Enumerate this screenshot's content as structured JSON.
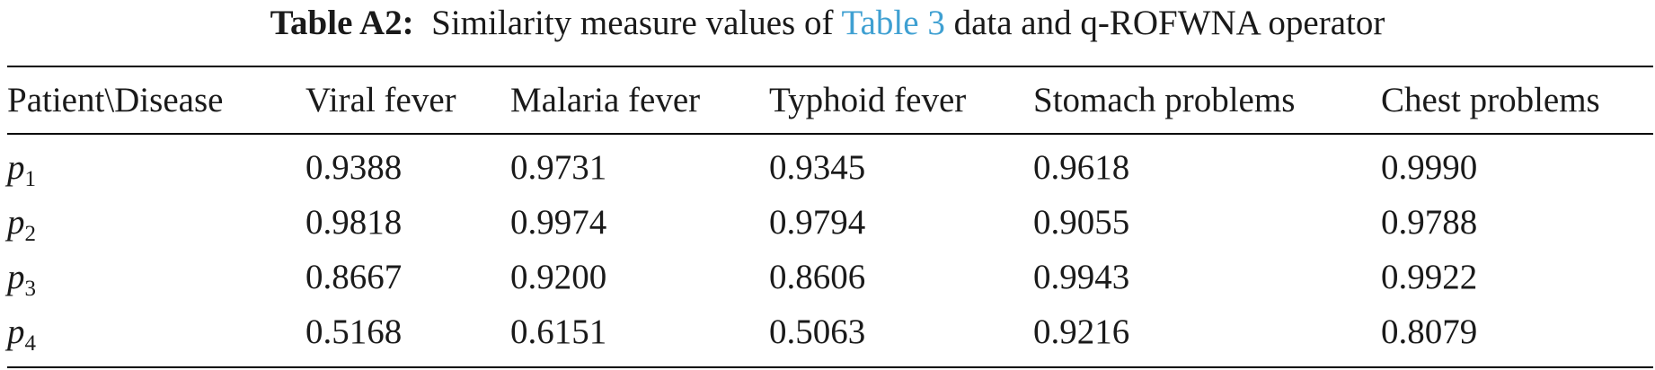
{
  "caption": {
    "label": "Table A2:",
    "text_before": "Similarity measure values of",
    "link": "Table 3",
    "text_after": "data and q-ROFWNA operator"
  },
  "table": {
    "columns": [
      "Patient\\Disease",
      "Viral fever",
      "Malaria fever",
      "Typhoid fever",
      "Stomach problems",
      "Chest problems"
    ],
    "rows": [
      {
        "patient": "p",
        "sub": "1",
        "values": [
          "0.9388",
          "0.9731",
          "0.9345",
          "0.9618",
          "0.9990"
        ]
      },
      {
        "patient": "p",
        "sub": "2",
        "values": [
          "0.9818",
          "0.9974",
          "0.9794",
          "0.9055",
          "0.9788"
        ]
      },
      {
        "patient": "p",
        "sub": "3",
        "values": [
          "0.8667",
          "0.9200",
          "0.8606",
          "0.9943",
          "0.9922"
        ]
      },
      {
        "patient": "p",
        "sub": "4",
        "values": [
          "0.5168",
          "0.6151",
          "0.5063",
          "0.9216",
          "0.8079"
        ]
      }
    ]
  }
}
